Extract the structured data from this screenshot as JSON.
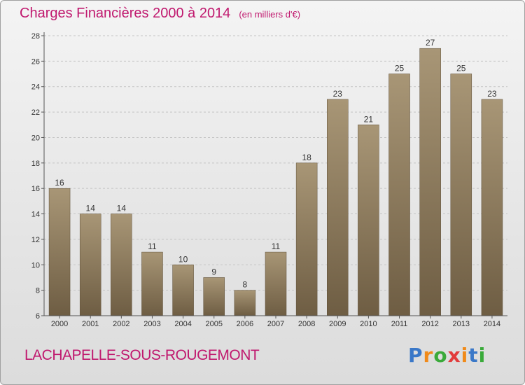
{
  "header": {
    "title": "Charges Financières 2000 à 2014",
    "unit": "(en milliers d'€)"
  },
  "footer": {
    "commune": "LACHAPELLE-SOUS-ROUGEMONT",
    "logo": [
      "P",
      "r",
      "o",
      "x",
      "i",
      "t",
      "i"
    ]
  },
  "colors": {
    "title": "#c0186e",
    "bar_top": "#a89676",
    "bar_bottom": "#6e5d43",
    "logo": [
      "#3a78c8",
      "#f08a1a",
      "#3aaa3a",
      "#e23b3b",
      "#f08a1a",
      "#3a78c8",
      "#3aaa3a"
    ]
  },
  "chart_data": {
    "type": "bar",
    "title": "Charges Financières 2000 à 2014",
    "subtitle": "(en milliers d'€)",
    "categories": [
      "2000",
      "2001",
      "2002",
      "2003",
      "2004",
      "2005",
      "2006",
      "2007",
      "2008",
      "2009",
      "2010",
      "2011",
      "2012",
      "2013",
      "2014"
    ],
    "values": [
      16,
      14,
      14,
      11,
      10,
      9,
      8,
      11,
      18,
      23,
      21,
      25,
      27,
      25,
      23
    ],
    "ylim": [
      6,
      28
    ],
    "yticks": [
      6,
      8,
      10,
      12,
      14,
      16,
      18,
      20,
      22,
      24,
      26,
      28
    ],
    "grid": "horizontal dashed",
    "xlabel": "",
    "ylabel": ""
  }
}
